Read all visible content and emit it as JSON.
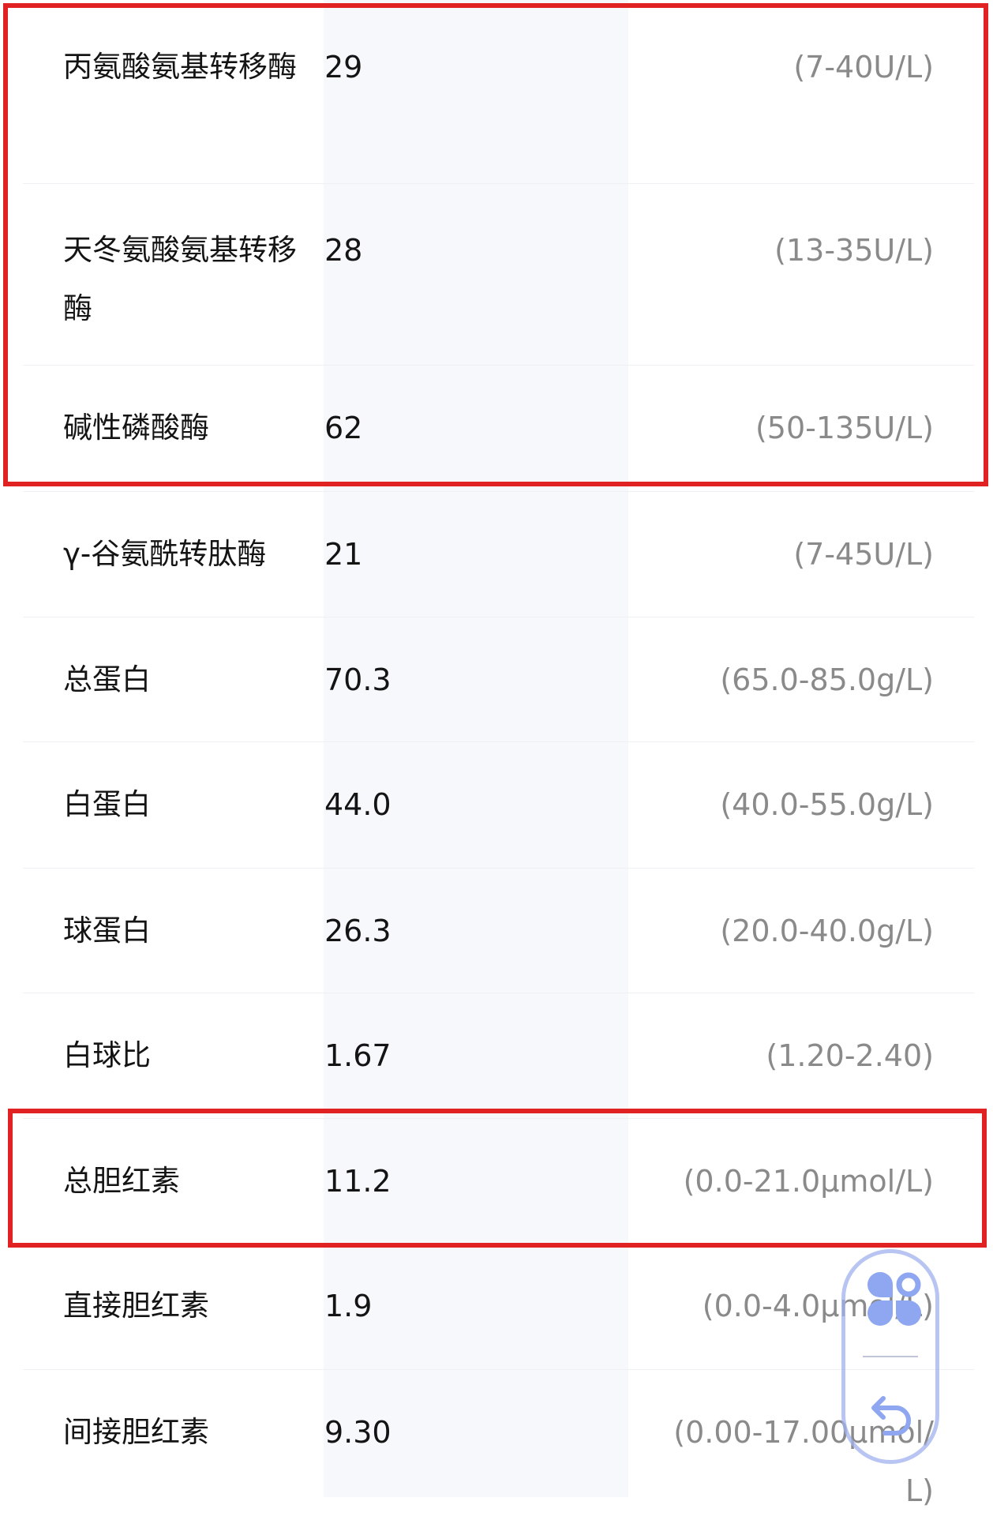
{
  "rows": [
    {
      "name": "丙氨酸氨基转移酶",
      "value": "29",
      "range": "(7-40U/L)"
    },
    {
      "name": "天冬氨酸氨基转移酶",
      "value": "28",
      "range": "(13-35U/L)"
    },
    {
      "name": "碱性磷酸酶",
      "value": "62",
      "range": "(50-135U/L)"
    },
    {
      "name": "γ-谷氨酰转肽酶",
      "value": "21",
      "range": "(7-45U/L)"
    },
    {
      "name": "总蛋白",
      "value": "70.3",
      "range": "(65.0-85.0g/L)"
    },
    {
      "name": "白蛋白",
      "value": "44.0",
      "range": "(40.0-55.0g/L)"
    },
    {
      "name": "球蛋白",
      "value": "26.3",
      "range": "(20.0-40.0g/L)"
    },
    {
      "name": "白球比",
      "value": "1.67",
      "range": "(1.20-2.40)"
    },
    {
      "name": "总胆红素",
      "value": "11.2",
      "range": "(0.0-21.0μmol/L)"
    },
    {
      "name": "直接胆红素",
      "value": "1.9",
      "range": "(0.0-4.0μmol/L)"
    },
    {
      "name": "间接胆红素",
      "value": "9.30",
      "range": "(0.00-17.00μmol/L)"
    }
  ],
  "highlight_color": "#e02222",
  "floating_widget": {
    "icons": [
      "apps-icon",
      "back-icon"
    ]
  }
}
